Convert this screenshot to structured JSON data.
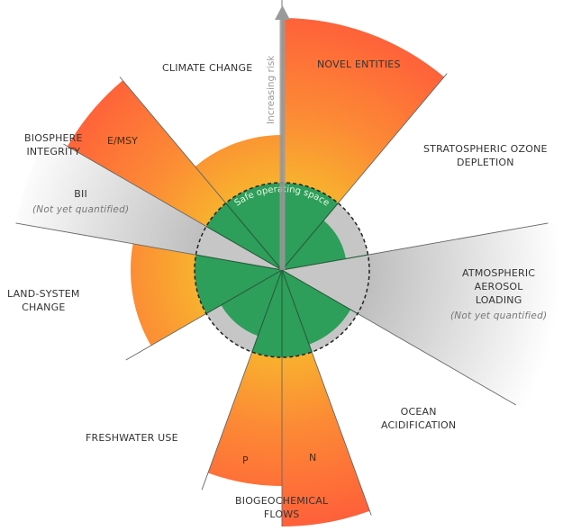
{
  "axis_label": "Increasing risk",
  "safe_zone_label": "Safe operating space",
  "not_quantified": "(Not yet quantified)",
  "colors": {
    "safe": "#2e9e5b",
    "globe": "#c6c6c6",
    "risk_low": "#f8b12e",
    "risk_high": "#ff5e3a",
    "not_quantified": "#c0c0c0"
  },
  "boundaries": [
    {
      "name": "NOVEL ENTITIES",
      "status": "transgressed"
    },
    {
      "name": "STRATOSPHERIC OZONE DEPLETION",
      "line1": "STRATOSPHERIC OZONE",
      "line2": "DEPLETION",
      "status": "safe"
    },
    {
      "name": "ATMOSPHERIC AEROSOL LOADING",
      "line1": "ATMOSPHERIC",
      "line2": "AEROSOL",
      "line3": "LOADING",
      "status": "not quantified"
    },
    {
      "name": "OCEAN ACIDIFICATION",
      "line1": "OCEAN",
      "line2": "ACIDIFICATION",
      "status": "safe"
    },
    {
      "name": "BIOGEOCHEMICAL FLOWS",
      "line1": "BIOGEOCHEMICAL",
      "line2": "FLOWS",
      "sub": [
        {
          "label": "N",
          "status": "transgressed"
        },
        {
          "label": "P",
          "status": "transgressed"
        }
      ]
    },
    {
      "name": "FRESHWATER USE",
      "status": "safe"
    },
    {
      "name": "LAND-SYSTEM CHANGE",
      "line1": "LAND-SYSTEM",
      "line2": "CHANGE",
      "status": "transgressed"
    },
    {
      "name": "BIOSPHERE INTEGRITY",
      "line1": "BIOSPHERE",
      "line2": "INTEGRITY",
      "sub": [
        {
          "label": "BII",
          "status": "not quantified"
        },
        {
          "label": "E/MSY",
          "status": "transgressed"
        }
      ]
    },
    {
      "name": "CLIMATE CHANGE",
      "status": "transgressed"
    }
  ]
}
